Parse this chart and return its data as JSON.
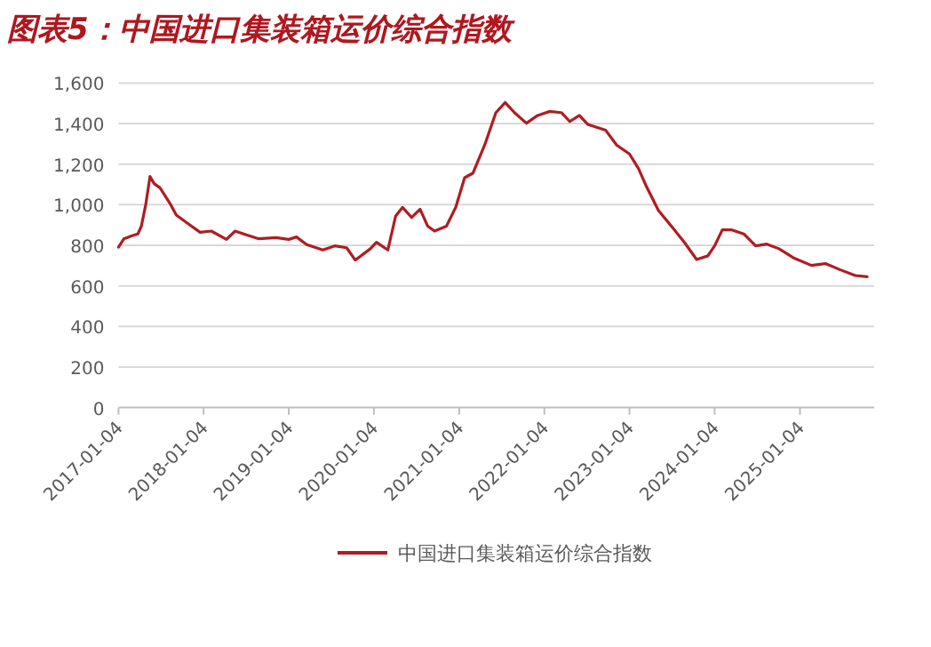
{
  "chart_data": {
    "type": "line",
    "title": "图表5：中国进口集装箱运价综合指数",
    "xlim": [
      "2017-01-04",
      "2025-11-18"
    ],
    "xticks": [
      "2017-01-04",
      "2018-01-04",
      "2019-01-04",
      "2020-01-04",
      "2021-01-04",
      "2022-01-04",
      "2023-01-04",
      "2024-01-04",
      "2025-01-04"
    ],
    "ylim": [
      0,
      1600
    ],
    "yticks": [
      0,
      200,
      400,
      600,
      800,
      {
        "value": 1000,
        "label": "1,000"
      },
      {
        "value": 1200,
        "label": "1,200"
      },
      {
        "value": 1400,
        "label": "1,400"
      },
      {
        "value": 1600,
        "label": "1,600"
      }
    ],
    "grid": "y",
    "legend": "bottom",
    "x": [
      "2017-01-04",
      "2017-01-27",
      "2017-03-03",
      "2017-03-28",
      "2017-04-12",
      "2017-05-01",
      "2017-05-19",
      "2017-06-06",
      "2017-07-01",
      "2017-08-15",
      "2017-09-09",
      "2017-10-31",
      "2017-12-20",
      "2018-02-06",
      "2018-04-12",
      "2018-05-19",
      "2018-07-09",
      "2018-08-29",
      "2018-11-10",
      "2019-01-04",
      "2019-02-06",
      "2019-03-22",
      "2019-05-30",
      "2019-07-20",
      "2019-09-09",
      "2019-10-16",
      "2019-12-20",
      "2020-01-15",
      "2020-03-04",
      "2020-04-06",
      "2020-05-06",
      "2020-06-14",
      "2020-07-20",
      "2020-08-22",
      "2020-09-20",
      "2020-11-10",
      "2020-12-20",
      "2021-01-27",
      "2021-03-04",
      "2021-04-23",
      "2021-06-10",
      "2021-07-20",
      "2021-08-29",
      "2021-10-19",
      "2021-12-06",
      "2022-01-27",
      "2022-03-18",
      "2022-04-23",
      "2022-06-03",
      "2022-07-09",
      "2022-09-24",
      "2022-11-10",
      "2023-01-04",
      "2023-02-12",
      "2023-03-18",
      "2023-05-08",
      "2023-07-09",
      "2023-08-29",
      "2023-10-19",
      "2023-12-06",
      "2024-01-04",
      "2024-02-06",
      "2024-03-18",
      "2024-05-08",
      "2024-06-28",
      "2024-08-15",
      "2024-10-06",
      "2024-12-06",
      "2025-02-22",
      "2025-04-23",
      "2025-06-24",
      "2025-08-29",
      "2025-10-19"
    ],
    "series": [
      {
        "name": "中国进口集装箱运价综合指数",
        "color": "#b01c22",
        "values": [
          791,
          832,
          847,
          856,
          894,
          1002,
          1139,
          1104,
          1083,
          1002,
          949,
          905,
          864,
          870,
          829,
          870,
          850,
          832,
          838,
          829,
          841,
          803,
          777,
          797,
          788,
          727,
          783,
          815,
          777,
          943,
          987,
          937,
          978,
          894,
          870,
          894,
          987,
          1133,
          1156,
          1294,
          1454,
          1504,
          1454,
          1402,
          1440,
          1460,
          1454,
          1410,
          1440,
          1396,
          1367,
          1294,
          1250,
          1177,
          1089,
          972,
          885,
          812,
          730,
          748,
          797,
          876,
          876,
          856,
          797,
          806,
          783,
          739,
          701,
          710,
          680,
          651,
          645
        ]
      }
    ]
  }
}
